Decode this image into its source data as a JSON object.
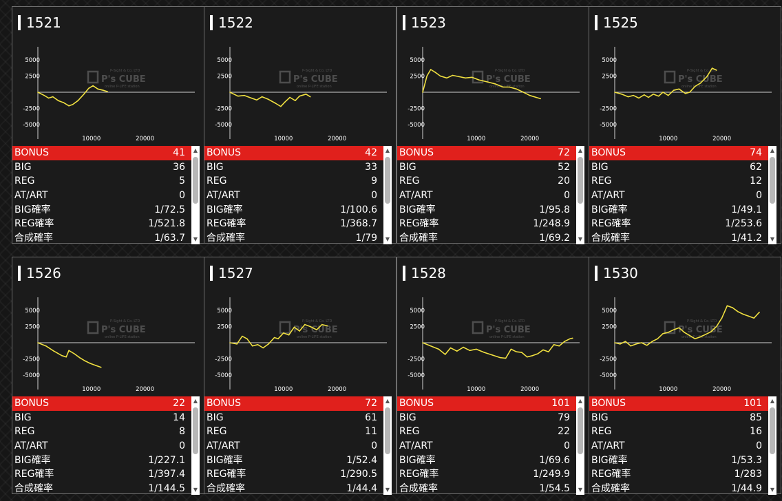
{
  "axis": {
    "y_ticks": [
      "5000",
      "2500",
      "-2500",
      "-5000"
    ],
    "x_ticks": [
      "10000",
      "20000"
    ]
  },
  "watermark": {
    "brand": "P's CUBE",
    "line1": "P-Sight & Co. LTD",
    "line2": "online P-LIFE station"
  },
  "colors": {
    "line": "#f0e040",
    "bonus_row": "#e0201c",
    "card_border": "#6e6e6e"
  },
  "labels": {
    "bonus": "BONUS",
    "big": "BIG",
    "reg": "REG",
    "atart": "AT/ART",
    "big_rate": "BIG確率",
    "reg_rate": "REG確率",
    "combined_rate": "合成確率"
  },
  "machines": [
    {
      "id": "1521",
      "bonus": "41",
      "big": "36",
      "reg": "5",
      "atart": "0",
      "big_rate": "1/72.5",
      "reg_rate": "1/521.8",
      "combined_rate": "1/63.7"
    },
    {
      "id": "1522",
      "bonus": "42",
      "big": "33",
      "reg": "9",
      "atart": "0",
      "big_rate": "1/100.6",
      "reg_rate": "1/368.7",
      "combined_rate": "1/79"
    },
    {
      "id": "1523",
      "bonus": "72",
      "big": "52",
      "reg": "20",
      "atart": "0",
      "big_rate": "1/95.8",
      "reg_rate": "1/248.9",
      "combined_rate": "1/69.2"
    },
    {
      "id": "1525",
      "bonus": "74",
      "big": "62",
      "reg": "12",
      "atart": "0",
      "big_rate": "1/49.1",
      "reg_rate": "1/253.6",
      "combined_rate": "1/41.2"
    },
    {
      "id": "1526",
      "bonus": "22",
      "big": "14",
      "reg": "8",
      "atart": "0",
      "big_rate": "1/227.1",
      "reg_rate": "1/397.4",
      "combined_rate": "1/144.5"
    },
    {
      "id": "1527",
      "bonus": "72",
      "big": "61",
      "reg": "11",
      "atart": "0",
      "big_rate": "1/52.4",
      "reg_rate": "1/290.5",
      "combined_rate": "1/44.4"
    },
    {
      "id": "1528",
      "bonus": "101",
      "big": "79",
      "reg": "22",
      "atart": "0",
      "big_rate": "1/69.6",
      "reg_rate": "1/249.9",
      "combined_rate": "1/54.5"
    },
    {
      "id": "1530",
      "bonus": "101",
      "big": "85",
      "reg": "16",
      "atart": "0",
      "big_rate": "1/53.3",
      "reg_rate": "1/283",
      "combined_rate": "1/44.9"
    }
  ],
  "chart_data": [
    {
      "type": "line",
      "title": "1521",
      "ylim": [
        -7000,
        7000
      ],
      "xlim": [
        0,
        30000
      ],
      "x": [
        0,
        1200,
        2000,
        2800,
        3800,
        4800,
        5800,
        6500,
        7500,
        8600,
        9500,
        10300,
        11200,
        12200,
        13000
      ],
      "y": [
        0,
        -500,
        -900,
        -700,
        -1300,
        -1600,
        -2100,
        -1900,
        -1300,
        -300,
        600,
        1000,
        500,
        300,
        100
      ]
    },
    {
      "type": "line",
      "title": "1522",
      "ylim": [
        -7000,
        7000
      ],
      "xlim": [
        0,
        30000
      ],
      "x": [
        0,
        1500,
        2700,
        4000,
        5000,
        6000,
        7200,
        8500,
        9500,
        10300,
        11200,
        12200,
        13000,
        14200,
        15000
      ],
      "y": [
        0,
        -600,
        -500,
        -900,
        -1200,
        -700,
        -1100,
        -1700,
        -2200,
        -1500,
        -800,
        -1300,
        -600,
        -300,
        -700
      ]
    },
    {
      "type": "line",
      "title": "1523",
      "ylim": [
        -7000,
        7000
      ],
      "xlim": [
        0,
        30000
      ],
      "x": [
        0,
        800,
        1500,
        2300,
        3300,
        4500,
        5600,
        6800,
        8000,
        9200,
        10500,
        12000,
        13500,
        15000,
        16200,
        17500,
        18800,
        20000,
        21200,
        22000
      ],
      "y": [
        0,
        2500,
        3500,
        3100,
        2500,
        2200,
        2600,
        2400,
        2200,
        2300,
        1900,
        1600,
        1300,
        800,
        800,
        500,
        0,
        -500,
        -800,
        -1000
      ]
    },
    {
      "type": "line",
      "title": "1525",
      "ylim": [
        -7000,
        7000
      ],
      "xlim": [
        0,
        30000
      ],
      "x": [
        0,
        1300,
        2500,
        3500,
        4500,
        5500,
        6300,
        7200,
        8200,
        9000,
        10000,
        11000,
        12000,
        13200,
        14000,
        15000,
        16000,
        17200,
        18200,
        19000
      ],
      "y": [
        0,
        -300,
        -700,
        -500,
        -900,
        -400,
        -800,
        -300,
        -600,
        0,
        -500,
        300,
        500,
        -200,
        0,
        900,
        1400,
        2400,
        3700,
        3400
      ]
    },
    {
      "type": "line",
      "title": "1526",
      "ylim": [
        -7000,
        7000
      ],
      "xlim": [
        0,
        30000
      ],
      "x": [
        0,
        1500,
        3000,
        4500,
        5300,
        5800,
        6800,
        7800,
        8800,
        9800,
        10800,
        11800
      ],
      "y": [
        0,
        -500,
        -1300,
        -2000,
        -2200,
        -1200,
        -1700,
        -2300,
        -2800,
        -3200,
        -3500,
        -3800
      ]
    },
    {
      "type": "line",
      "title": "1527",
      "ylim": [
        -7000,
        7000
      ],
      "xlim": [
        0,
        30000
      ],
      "x": [
        0,
        1300,
        2300,
        3200,
        4200,
        5200,
        6200,
        7200,
        8300,
        9000,
        10000,
        11000,
        12000,
        13000,
        14000,
        15000,
        16200,
        17200,
        18200
      ],
      "y": [
        0,
        -200,
        1000,
        600,
        -500,
        -300,
        -800,
        -200,
        800,
        600,
        1500,
        1200,
        2400,
        1800,
        2800,
        2500,
        2000,
        2800,
        2600
      ]
    },
    {
      "type": "line",
      "title": "1528",
      "ylim": [
        -7000,
        7000
      ],
      "xlim": [
        0,
        30000
      ],
      "x": [
        0,
        1500,
        3000,
        4200,
        5200,
        6400,
        7600,
        8800,
        10000,
        11500,
        13000,
        14500,
        15500,
        16500,
        17500,
        18500,
        19500,
        20500,
        21500,
        22500,
        23500,
        24500,
        25500,
        26500,
        27500,
        28000
      ],
      "y": [
        0,
        -500,
        -1000,
        -1800,
        -800,
        -1300,
        -700,
        -1200,
        -1000,
        -1500,
        -1900,
        -2300,
        -2400,
        -1000,
        -1400,
        -1500,
        -2200,
        -2000,
        -1700,
        -1100,
        -1400,
        -300,
        -500,
        200,
        600,
        700
      ]
    },
    {
      "type": "line",
      "title": "1530",
      "ylim": [
        -7000,
        7000
      ],
      "xlim": [
        0,
        30000
      ],
      "x": [
        0,
        1000,
        2000,
        3000,
        4000,
        5000,
        6000,
        7000,
        8000,
        9000,
        10000,
        11000,
        12000,
        13000,
        14000,
        15000,
        16000,
        17000,
        18000,
        19000,
        20000,
        21000,
        22000,
        23000,
        24000,
        25000,
        26000,
        27000
      ],
      "y": [
        0,
        -200,
        200,
        -500,
        -200,
        0,
        -400,
        200,
        600,
        1400,
        1600,
        2000,
        2300,
        1600,
        1100,
        600,
        900,
        1300,
        1700,
        2500,
        3800,
        5700,
        5400,
        4800,
        4400,
        4100,
        3800,
        4700
      ]
    }
  ]
}
